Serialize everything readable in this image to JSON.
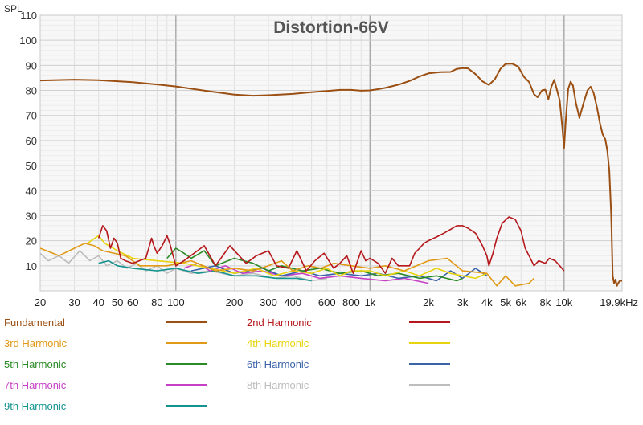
{
  "chart_data": {
    "type": "line",
    "title": "Distortion-66V",
    "ylabel": "SPL",
    "x_scale": "log",
    "xlim": [
      20,
      19900
    ],
    "ylim": [
      0,
      110
    ],
    "grid": true,
    "legend_position": "bottom",
    "x_ticks": [
      {
        "value": 20,
        "label": "20"
      },
      {
        "value": 30,
        "label": "30"
      },
      {
        "value": 40,
        "label": "40"
      },
      {
        "value": 50,
        "label": "50"
      },
      {
        "value": 60,
        "label": "60"
      },
      {
        "value": 80,
        "label": "80"
      },
      {
        "value": 100,
        "label": "100"
      },
      {
        "value": 200,
        "label": "200"
      },
      {
        "value": 300,
        "label": "300"
      },
      {
        "value": 400,
        "label": "400"
      },
      {
        "value": 600,
        "label": "600"
      },
      {
        "value": 800,
        "label": "800"
      },
      {
        "value": 1000,
        "label": "1k"
      },
      {
        "value": 2000,
        "label": "2k"
      },
      {
        "value": 3000,
        "label": "3k"
      },
      {
        "value": 4000,
        "label": "4k"
      },
      {
        "value": 5000,
        "label": "5k"
      },
      {
        "value": 6000,
        "label": "6k"
      },
      {
        "value": 8000,
        "label": "8k"
      },
      {
        "value": 10000,
        "label": "10k"
      },
      {
        "value": 19900,
        "label": "19.9kHz"
      }
    ],
    "y_ticks": [
      10,
      20,
      30,
      40,
      50,
      60,
      70,
      80,
      90,
      100,
      110
    ],
    "series": [
      {
        "name": "Fundamental",
        "color": "#9b4f12",
        "points": [
          [
            20,
            84
          ],
          [
            30,
            84.3
          ],
          [
            40,
            84.1
          ],
          [
            60,
            83.3
          ],
          [
            80,
            82.4
          ],
          [
            100,
            81.6
          ],
          [
            150,
            79.6
          ],
          [
            200,
            78.3
          ],
          [
            250,
            77.9
          ],
          [
            300,
            78.1
          ],
          [
            400,
            78.6
          ],
          [
            500,
            79.3
          ],
          [
            600,
            79.8
          ],
          [
            700,
            80.2
          ],
          [
            800,
            80.2
          ],
          [
            900,
            79.9
          ],
          [
            1000,
            80
          ],
          [
            1100,
            80.5
          ],
          [
            1200,
            81
          ],
          [
            1400,
            82.3
          ],
          [
            1600,
            83.8
          ],
          [
            1800,
            85.6
          ],
          [
            2000,
            86.8
          ],
          [
            2300,
            87.3
          ],
          [
            2600,
            87.4
          ],
          [
            2800,
            88.6
          ],
          [
            3000,
            88.9
          ],
          [
            3200,
            88.8
          ],
          [
            3500,
            86.5
          ],
          [
            3800,
            83.6
          ],
          [
            4100,
            82.2
          ],
          [
            4400,
            84.5
          ],
          [
            4700,
            88.6
          ],
          [
            5000,
            90.6
          ],
          [
            5400,
            90.7
          ],
          [
            5800,
            89.5
          ],
          [
            6200,
            85.5
          ],
          [
            6600,
            83.4
          ],
          [
            7000,
            78.5
          ],
          [
            7300,
            77.3
          ],
          [
            7700,
            80
          ],
          [
            8000,
            80.3
          ],
          [
            8300,
            76.5
          ],
          [
            8600,
            81.5
          ],
          [
            8900,
            84.2
          ],
          [
            9200,
            80
          ],
          [
            9500,
            76
          ],
          [
            9800,
            65
          ],
          [
            10000,
            57
          ],
          [
            10200,
            68
          ],
          [
            10500,
            80.5
          ],
          [
            10800,
            83.5
          ],
          [
            11100,
            82
          ],
          [
            11500,
            75
          ],
          [
            12000,
            69
          ],
          [
            12600,
            75
          ],
          [
            13200,
            80
          ],
          [
            13700,
            81.5
          ],
          [
            14200,
            79
          ],
          [
            14800,
            73
          ],
          [
            15300,
            67
          ],
          [
            15800,
            62.5
          ],
          [
            16300,
            60.5
          ],
          [
            16700,
            56
          ],
          [
            17100,
            48
          ],
          [
            17500,
            30
          ],
          [
            17800,
            6
          ],
          [
            18100,
            3
          ],
          [
            18400,
            4.5
          ],
          [
            18700,
            2
          ],
          [
            19000,
            3
          ],
          [
            19400,
            4
          ],
          [
            19900,
            4
          ]
        ]
      },
      {
        "name": "2nd Harmonic",
        "color": "#b5171a",
        "points": [
          [
            40,
            21
          ],
          [
            42,
            26
          ],
          [
            44,
            24
          ],
          [
            46,
            17
          ],
          [
            48,
            21
          ],
          [
            50,
            19
          ],
          [
            52,
            13
          ],
          [
            55,
            12
          ],
          [
            60,
            11
          ],
          [
            70,
            13
          ],
          [
            75,
            21
          ],
          [
            77,
            18
          ],
          [
            80,
            15
          ],
          [
            85,
            18
          ],
          [
            90,
            22
          ],
          [
            93,
            19
          ],
          [
            100,
            10
          ],
          [
            110,
            12
          ],
          [
            140,
            18
          ],
          [
            160,
            10
          ],
          [
            190,
            18
          ],
          [
            230,
            11
          ],
          [
            260,
            14
          ],
          [
            300,
            16
          ],
          [
            330,
            10
          ],
          [
            380,
            9
          ],
          [
            420,
            16
          ],
          [
            470,
            8
          ],
          [
            520,
            12
          ],
          [
            580,
            15
          ],
          [
            650,
            9
          ],
          [
            700,
            11
          ],
          [
            760,
            14
          ],
          [
            820,
            7
          ],
          [
            900,
            16
          ],
          [
            950,
            12
          ],
          [
            1000,
            13
          ],
          [
            1100,
            11
          ],
          [
            1200,
            7
          ],
          [
            1300,
            13
          ],
          [
            1400,
            10
          ],
          [
            1600,
            10
          ],
          [
            1700,
            15
          ],
          [
            1800,
            17
          ],
          [
            1900,
            19
          ],
          [
            2000,
            20
          ],
          [
            2200,
            21.5
          ],
          [
            2400,
            23
          ],
          [
            2600,
            24.5
          ],
          [
            2800,
            26
          ],
          [
            3000,
            26
          ],
          [
            3200,
            25
          ],
          [
            3500,
            23
          ],
          [
            3800,
            18
          ],
          [
            4000,
            14
          ],
          [
            4100,
            10
          ],
          [
            4300,
            15
          ],
          [
            4500,
            21
          ],
          [
            4800,
            27
          ],
          [
            5200,
            29.5
          ],
          [
            5600,
            28.5
          ],
          [
            6000,
            24
          ],
          [
            6300,
            17
          ],
          [
            6600,
            14
          ],
          [
            7000,
            10
          ],
          [
            7400,
            12
          ],
          [
            8000,
            11
          ],
          [
            8400,
            13
          ],
          [
            9000,
            12
          ],
          [
            9500,
            10
          ],
          [
            10000,
            8
          ]
        ]
      },
      {
        "name": "3rd Harmonic",
        "color": "#e09a18",
        "points": [
          [
            20,
            17
          ],
          [
            25,
            14
          ],
          [
            30,
            17
          ],
          [
            34,
            19
          ],
          [
            38,
            18
          ],
          [
            42,
            16
          ],
          [
            48,
            15
          ],
          [
            55,
            14
          ],
          [
            65,
            10
          ],
          [
            90,
            10
          ],
          [
            120,
            12
          ],
          [
            160,
            8
          ],
          [
            200,
            9
          ],
          [
            250,
            8
          ],
          [
            300,
            10
          ],
          [
            350,
            12
          ],
          [
            400,
            8
          ],
          [
            480,
            10
          ],
          [
            560,
            9
          ],
          [
            650,
            11
          ],
          [
            800,
            10
          ],
          [
            1000,
            9
          ],
          [
            1200,
            10
          ],
          [
            1500,
            8
          ],
          [
            2000,
            12
          ],
          [
            2500,
            13
          ],
          [
            3000,
            8
          ],
          [
            4000,
            7
          ],
          [
            4500,
            2
          ],
          [
            5000,
            6
          ],
          [
            5600,
            2
          ],
          [
            6600,
            3
          ],
          [
            7000,
            5
          ]
        ]
      },
      {
        "name": "4th Harmonic",
        "color": "#e8d40c",
        "points": [
          [
            35,
            19
          ],
          [
            40,
            22
          ],
          [
            43,
            19
          ],
          [
            50,
            16
          ],
          [
            60,
            13
          ],
          [
            80,
            12
          ],
          [
            110,
            11
          ],
          [
            150,
            9
          ],
          [
            200,
            7
          ],
          [
            260,
            9
          ],
          [
            320,
            6
          ],
          [
            400,
            8
          ],
          [
            500,
            7
          ],
          [
            600,
            9
          ],
          [
            700,
            6
          ],
          [
            800,
            8
          ],
          [
            1000,
            8
          ],
          [
            1200,
            6
          ],
          [
            1500,
            8
          ],
          [
            1800,
            6
          ],
          [
            2200,
            9
          ],
          [
            2600,
            7
          ],
          [
            3000,
            6
          ],
          [
            3500,
            5
          ],
          [
            4000,
            7
          ]
        ]
      },
      {
        "name": "5th Harmonic",
        "color": "#2a8a26",
        "points": [
          [
            90,
            13
          ],
          [
            100,
            17
          ],
          [
            110,
            15
          ],
          [
            120,
            13
          ],
          [
            140,
            16
          ],
          [
            160,
            10
          ],
          [
            200,
            13
          ],
          [
            250,
            11
          ],
          [
            300,
            8
          ],
          [
            350,
            10
          ],
          [
            450,
            8
          ],
          [
            550,
            9
          ],
          [
            700,
            7
          ],
          [
            900,
            8
          ],
          [
            1100,
            6
          ],
          [
            1400,
            7
          ],
          [
            1800,
            5
          ],
          [
            2200,
            6
          ],
          [
            2800,
            4
          ],
          [
            3000,
            5
          ]
        ]
      },
      {
        "name": "6th Harmonic",
        "color": "#3b63a8",
        "points": [
          [
            120,
            8
          ],
          [
            160,
            10
          ],
          [
            200,
            7
          ],
          [
            280,
            9
          ],
          [
            350,
            6
          ],
          [
            450,
            8
          ],
          [
            550,
            6
          ],
          [
            700,
            7
          ],
          [
            900,
            6
          ],
          [
            1100,
            7
          ],
          [
            1400,
            5
          ],
          [
            1800,
            6
          ],
          [
            2200,
            4
          ],
          [
            2600,
            8
          ],
          [
            3000,
            5
          ],
          [
            3500,
            9
          ],
          [
            4000,
            6
          ]
        ]
      },
      {
        "name": "7th Harmonic",
        "color": "#c640c6",
        "points": [
          [
            110,
            9
          ],
          [
            130,
            11
          ],
          [
            150,
            8
          ],
          [
            180,
            10
          ],
          [
            220,
            7
          ],
          [
            280,
            8
          ],
          [
            350,
            6
          ],
          [
            450,
            7
          ],
          [
            550,
            5
          ],
          [
            700,
            6
          ],
          [
            900,
            5
          ],
          [
            1200,
            4
          ],
          [
            1500,
            5
          ],
          [
            2000,
            3
          ]
        ]
      },
      {
        "name": "8th Harmonic",
        "color": "#bdbdbd",
        "points": [
          [
            20,
            15
          ],
          [
            22,
            12
          ],
          [
            25,
            14
          ],
          [
            28,
            11
          ],
          [
            32,
            16
          ],
          [
            36,
            12
          ],
          [
            40,
            14
          ],
          [
            44,
            10
          ],
          [
            50,
            12
          ],
          [
            56,
            9
          ],
          [
            63,
            11
          ],
          [
            70,
            8
          ],
          [
            80,
            10
          ],
          [
            90,
            7
          ],
          [
            100,
            9
          ],
          [
            120,
            7
          ],
          [
            150,
            8
          ],
          [
            200,
            6
          ],
          [
            250,
            7
          ],
          [
            320,
            5
          ],
          [
            400,
            6
          ],
          [
            500,
            4
          ],
          [
            600,
            5
          ]
        ]
      },
      {
        "name": "9th Harmonic",
        "color": "#14938f",
        "points": [
          [
            40,
            11
          ],
          [
            45,
            12
          ],
          [
            50,
            10
          ],
          [
            60,
            9
          ],
          [
            80,
            8
          ],
          [
            100,
            9
          ],
          [
            130,
            7
          ],
          [
            160,
            8
          ],
          [
            200,
            6
          ],
          [
            260,
            6
          ],
          [
            330,
            5
          ],
          [
            420,
            5
          ],
          [
            500,
            4
          ]
        ]
      }
    ]
  }
}
